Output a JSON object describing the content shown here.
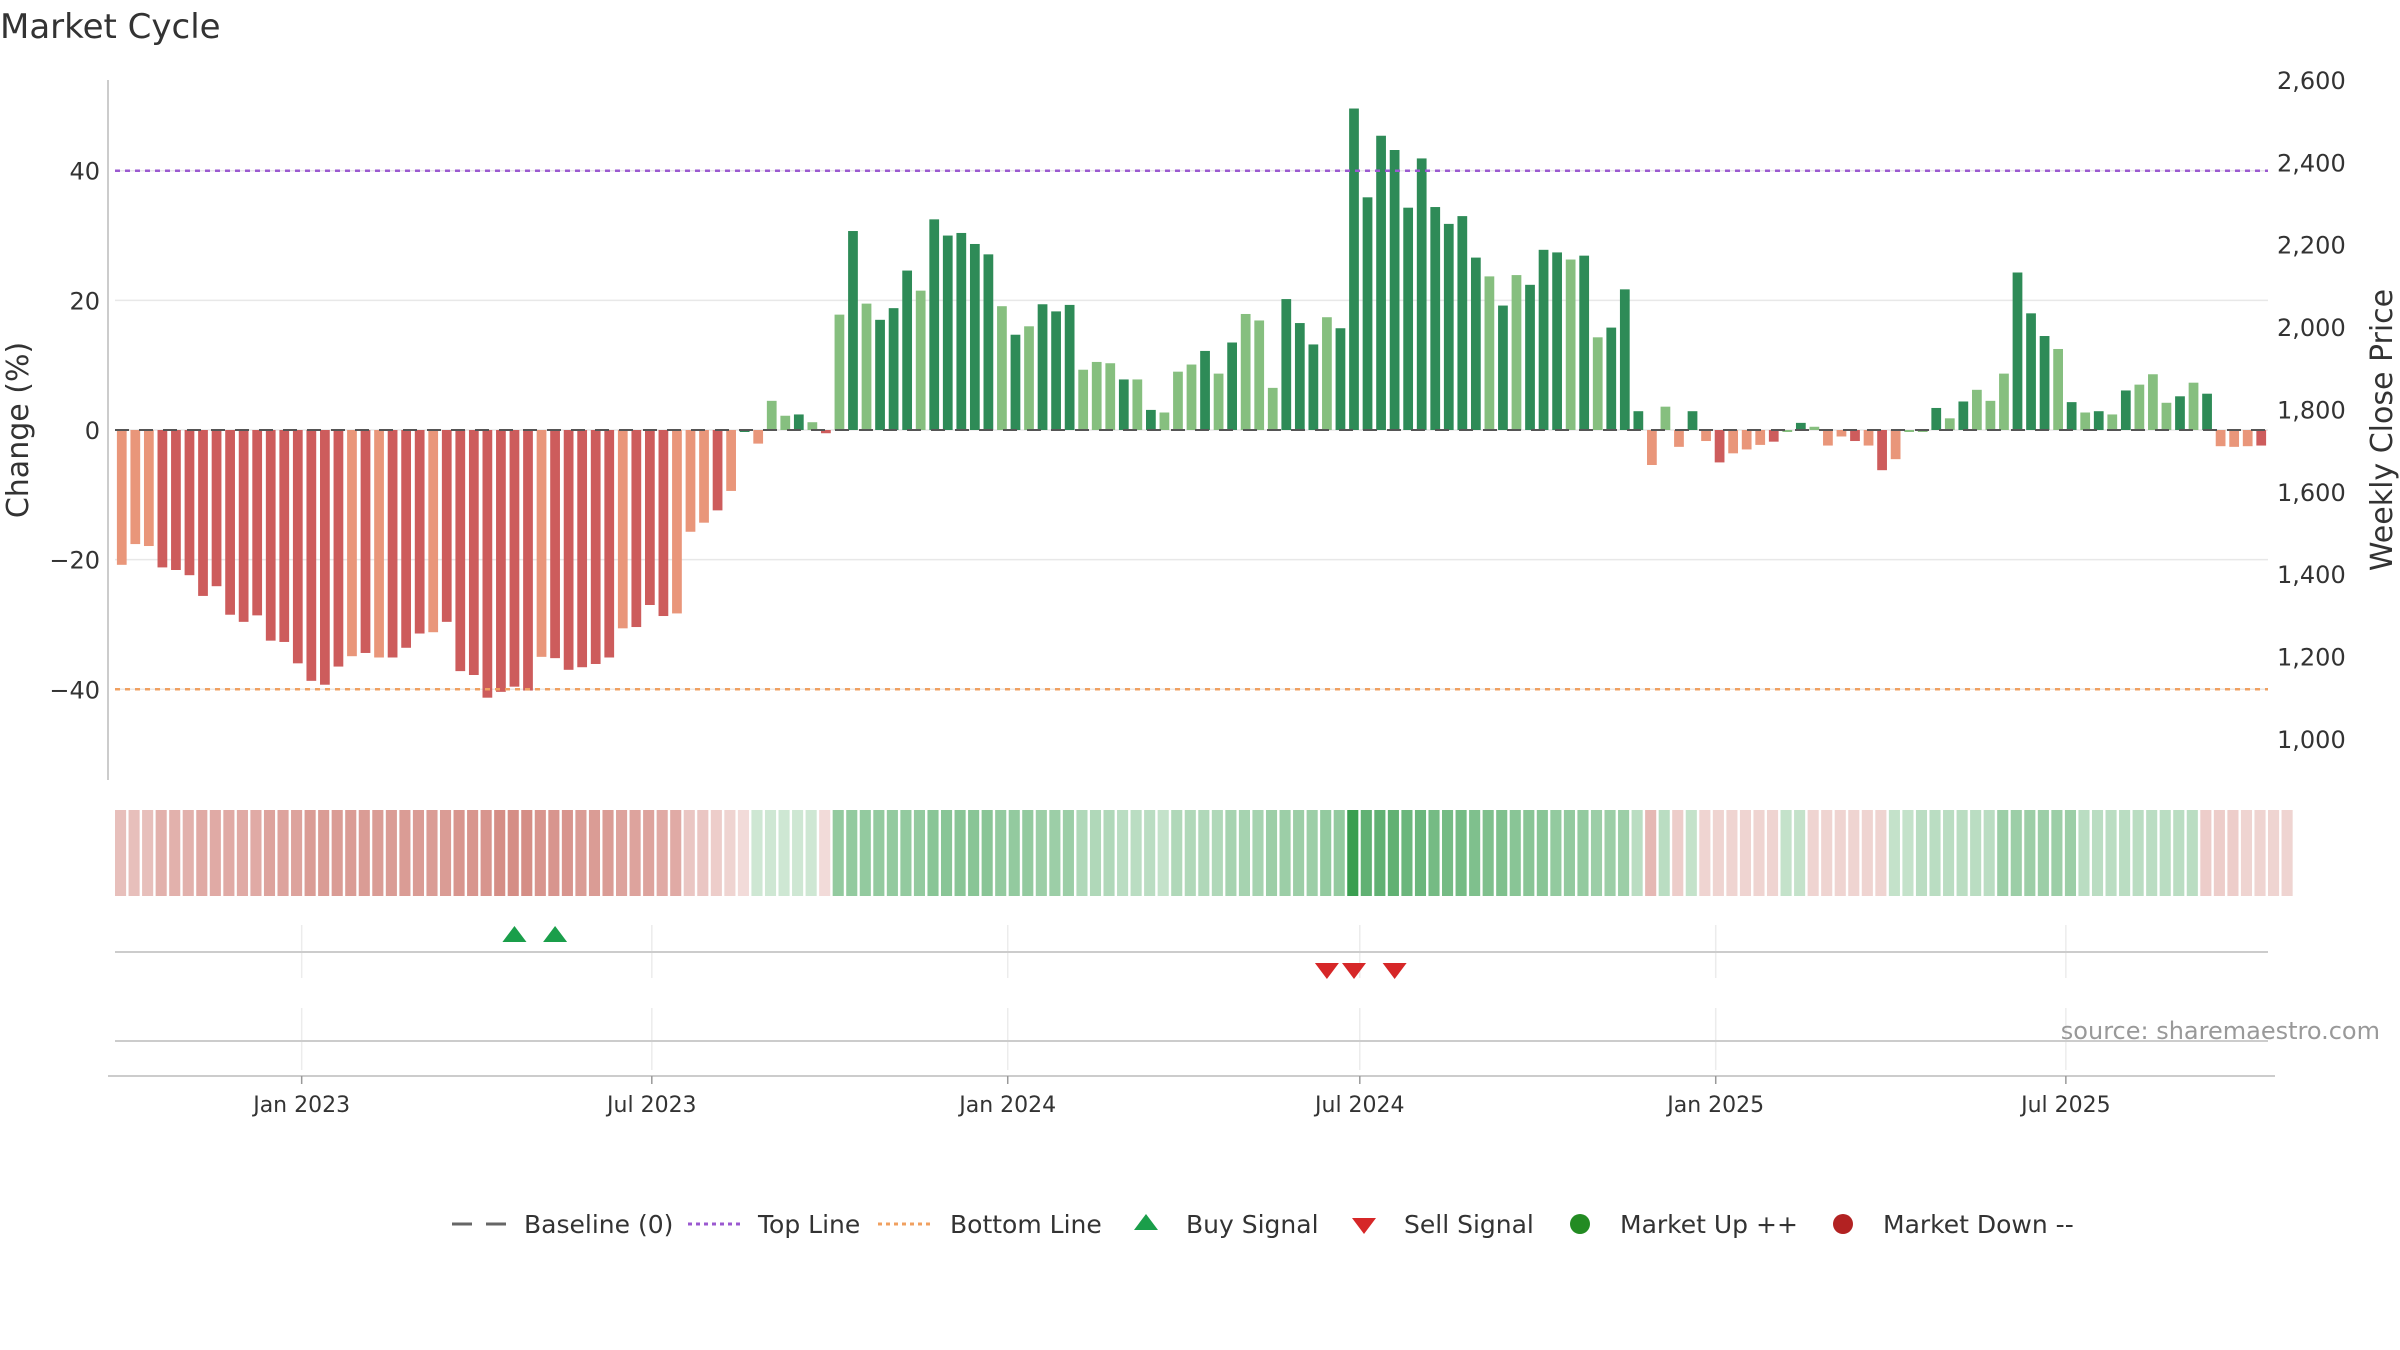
{
  "chart_data": {
    "type": "bar",
    "title": "Market Cycle",
    "ylabel": "Change (%)",
    "y2label": "Weekly Close Price",
    "ylim": [
      -54,
      54
    ],
    "y2lim": [
      900,
      2600
    ],
    "yticks": [
      40,
      20,
      0,
      -20,
      -40
    ],
    "ytick_labels": [
      "40",
      "20",
      "0",
      "−20",
      "−40"
    ],
    "y2ticks": [
      2600,
      2400,
      2200,
      2000,
      1800,
      1600,
      1400,
      1200,
      1000
    ],
    "y2tick_labels": [
      "2,600",
      "2,400",
      "2,200",
      "2,000",
      "1,800",
      "1,600",
      "1,400",
      "1,200",
      "1,000"
    ],
    "top_line": 40,
    "bottom_line": -40,
    "start_date": "2022-09-30",
    "week_days": 7,
    "values": [
      -20.8,
      -17.6,
      -17.9,
      -21.2,
      -21.6,
      -22.4,
      -25.6,
      -24.1,
      -28.5,
      -29.6,
      -28.6,
      -32.5,
      -32.7,
      -36,
      -38.7,
      -39.3,
      -36.5,
      -34.9,
      -34.4,
      -35.1,
      -35.1,
      -33.6,
      -31.4,
      -31.2,
      -29.6,
      -37.2,
      -37.8,
      -41.3,
      -40.4,
      -39.6,
      -40.2,
      -35,
      -35.2,
      -37,
      -36.6,
      -36.1,
      -35.1,
      -30.6,
      -30.4,
      -27,
      -28.7,
      -28.3,
      -15.7,
      -14.3,
      -12.4,
      -9.4,
      0,
      -2.1,
      4.5,
      2.2,
      2.4,
      1.2,
      -0.5,
      17.8,
      30.7,
      19.5,
      17,
      18.8,
      24.6,
      21.5,
      32.5,
      30,
      30.4,
      28.7,
      27.1,
      19.1,
      14.7,
      16,
      19.4,
      18.3,
      19.3,
      9.3,
      10.5,
      10.3,
      7.8,
      7.8,
      3.1,
      2.7,
      9,
      10.1,
      12.2,
      8.7,
      13.5,
      17.9,
      16.9,
      6.5,
      20.2,
      16.5,
      13.2,
      17.4,
      15.7,
      49.6,
      35.9,
      45.4,
      43.2,
      34.3,
      41.9,
      34.4,
      31.8,
      33,
      26.6,
      23.7,
      19.2,
      23.9,
      22.4,
      27.8,
      27.4,
      26.3,
      26.9,
      14.3,
      15.8,
      21.7,
      2.9,
      -5.4,
      3.6,
      -2.6,
      2.9,
      -1.7,
      -5,
      -3.6,
      -3,
      -2.3,
      -1.8,
      0,
      1.1,
      0.5,
      -2.4,
      -1,
      -1.7,
      -2.4,
      -6.2,
      -4.5,
      0,
      0,
      3.4,
      1.8,
      4.4,
      6.2,
      4.5,
      8.7,
      24.3,
      18,
      14.5,
      12.5,
      4.3,
      2.7,
      2.9,
      2.4,
      6.1,
      7,
      8.6,
      4.2,
      5.2,
      7.3,
      5.6,
      -2.5,
      -2.6,
      -2.5,
      -2.4
    ],
    "strip_strength": [
      0.45,
      0.45,
      0.45,
      0.55,
      0.55,
      0.55,
      0.6,
      0.6,
      0.6,
      0.6,
      0.6,
      0.65,
      0.65,
      0.65,
      0.7,
      0.7,
      0.7,
      0.7,
      0.7,
      0.7,
      0.7,
      0.7,
      0.7,
      0.7,
      0.7,
      0.75,
      0.75,
      0.75,
      0.8,
      0.8,
      0.8,
      0.75,
      0.75,
      0.75,
      0.7,
      0.7,
      0.7,
      0.65,
      0.65,
      0.65,
      0.6,
      0.6,
      0.4,
      0.4,
      0.35,
      0.3,
      0.25,
      0.25,
      0.25,
      0.25,
      0.25,
      0.25,
      0.25,
      0.55,
      0.55,
      0.55,
      0.55,
      0.55,
      0.55,
      0.55,
      0.6,
      0.6,
      0.6,
      0.6,
      0.6,
      0.55,
      0.55,
      0.55,
      0.5,
      0.5,
      0.5,
      0.4,
      0.4,
      0.4,
      0.35,
      0.35,
      0.35,
      0.3,
      0.4,
      0.4,
      0.4,
      0.4,
      0.45,
      0.45,
      0.45,
      0.5,
      0.5,
      0.5,
      0.5,
      0.55,
      0.55,
      1.0,
      0.8,
      0.8,
      0.8,
      0.75,
      0.75,
      0.7,
      0.7,
      0.7,
      0.65,
      0.65,
      0.65,
      0.6,
      0.6,
      0.6,
      0.55,
      0.55,
      0.55,
      0.5,
      0.5,
      0.5,
      0.35,
      0.5,
      0.35,
      0.35,
      0.3,
      0.3,
      0.3,
      0.3,
      0.3,
      0.3,
      0.3,
      0.3,
      0.3,
      0.3,
      0.3,
      0.3,
      0.3,
      0.3,
      0.3,
      0.3,
      0.3,
      0.35,
      0.35,
      0.35,
      0.35,
      0.35,
      0.35,
      0.5,
      0.5,
      0.5,
      0.5,
      0.5,
      0.5,
      0.35,
      0.35,
      0.35,
      0.35,
      0.35,
      0.35,
      0.35,
      0.35,
      0.35,
      0.35,
      0.35,
      0.35,
      0.3,
      0.3,
      0.3,
      0.3
    ],
    "strip_sign": [
      -1,
      -1,
      -1,
      -1,
      -1,
      -1,
      -1,
      -1,
      -1,
      -1,
      -1,
      -1,
      -1,
      -1,
      -1,
      -1,
      -1,
      -1,
      -1,
      -1,
      -1,
      -1,
      -1,
      -1,
      -1,
      -1,
      -1,
      -1,
      -1,
      -1,
      -1,
      -1,
      -1,
      -1,
      -1,
      -1,
      -1,
      -1,
      -1,
      -1,
      -1,
      -1,
      -1,
      -1,
      -1,
      -1,
      -1,
      1,
      1,
      1,
      1,
      1,
      -1,
      1,
      1,
      1,
      1,
      1,
      1,
      1,
      1,
      1,
      1,
      1,
      1,
      1,
      1,
      1,
      1,
      1,
      1,
      1,
      1,
      1,
      1,
      1,
      1,
      1,
      1,
      1,
      1,
      1,
      1,
      1,
      1,
      1,
      1,
      1,
      1,
      1,
      1,
      1,
      1,
      1,
      1,
      1,
      1,
      1,
      1,
      1,
      1,
      1,
      1,
      1,
      1,
      1,
      1,
      1,
      1,
      1,
      1,
      1,
      1,
      -1,
      1,
      -1,
      1,
      -1,
      -1,
      -1,
      -1,
      -1,
      -1,
      1,
      1,
      -1,
      -1,
      -1,
      -1,
      -1,
      -1,
      1,
      1,
      1,
      1,
      1,
      1,
      1,
      1,
      1,
      1,
      1,
      1,
      1,
      1,
      1,
      1,
      1,
      1,
      1,
      1,
      1,
      1,
      1,
      -1,
      -1,
      -1,
      -1
    ],
    "x_ticks": [
      {
        "date": "2023-01-01",
        "label": "Jan 2023"
      },
      {
        "date": "2023-07-01",
        "label": "Jul 2023"
      },
      {
        "date": "2024-01-01",
        "label": "Jan 2024"
      },
      {
        "date": "2024-07-01",
        "label": "Jul 2024"
      },
      {
        "date": "2025-01-01",
        "label": "Jan 2025"
      },
      {
        "date": "2025-07-01",
        "label": "Jul 2025"
      }
    ],
    "buy_signals": [
      "2023-04-21",
      "2023-05-12"
    ],
    "sell_signals": [
      "2024-06-14",
      "2024-06-28",
      "2024-07-19"
    ],
    "legend_position": "bottom-center",
    "grid": true
  },
  "legend": {
    "baseline": "Baseline (0)",
    "top_line": "Top Line",
    "bottom_line": "Bottom Line",
    "buy_signal": "Buy Signal",
    "sell_signal": "Sell Signal",
    "market_up": "Market Up ++",
    "market_down": "Market Down --"
  },
  "source": "source: sharemaestro.com",
  "colors": {
    "pos_strong": "#2e8b57",
    "pos_weak": "#86bf7f",
    "neg_strong": "#cd5c5c",
    "neg_weak": "#e9967a",
    "top_line": "#9b59d0",
    "bottom_line": "#f0a060",
    "buy": "#1a9e4a",
    "sell": "#d62728",
    "market_up": "#228b22",
    "market_down": "#b22222",
    "strip_pos": "#3a9e50",
    "strip_neg": "#c86a60"
  }
}
